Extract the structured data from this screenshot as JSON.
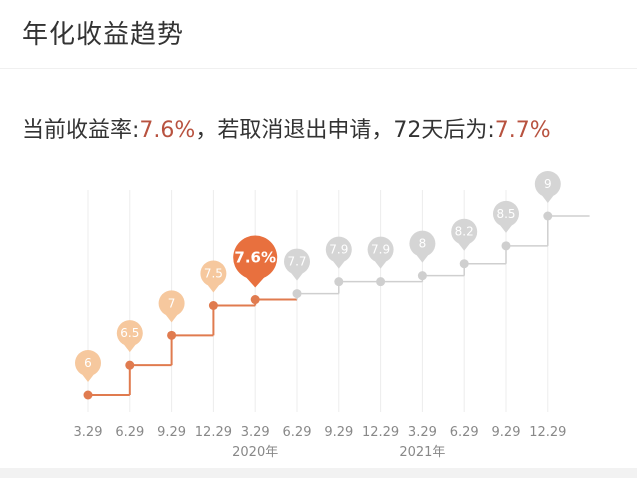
{
  "header": {
    "title": "年化收益趋势"
  },
  "summary": {
    "prefix": "当前收益率:",
    "current_rate": "7.6%",
    "middle": "，若取消退出申请，72天后为:",
    "future_rate": "7.7%"
  },
  "colors": {
    "past": "#e07b4f",
    "past_bubble": "#f6c89e",
    "current_bubble": "#e8703e",
    "future": "#cfcfcf",
    "future_bubble": "#d5d5d5",
    "rate_text": "#b8523f"
  },
  "chart_data": {
    "type": "line",
    "step": true,
    "categories": [
      "3.29",
      "6.29",
      "9.29",
      "12.29",
      "3.29",
      "6.29",
      "9.29",
      "12.29",
      "3.29",
      "6.29",
      "9.29",
      "12.29"
    ],
    "year_labels": [
      {
        "label": "2020年",
        "under_category_index": 4
      },
      {
        "label": "2021年",
        "under_category_index": 8
      }
    ],
    "values": [
      6,
      6.5,
      7,
      7.5,
      7.6,
      7.7,
      7.9,
      7.9,
      8,
      8.2,
      8.5,
      9
    ],
    "point_labels": [
      "6",
      "6.5",
      "7",
      "7.5",
      "7.6%",
      "7.7",
      "7.9",
      "7.9",
      "8",
      "8.2",
      "8.5",
      "9"
    ],
    "current_index": 4,
    "grid": "vertical"
  }
}
